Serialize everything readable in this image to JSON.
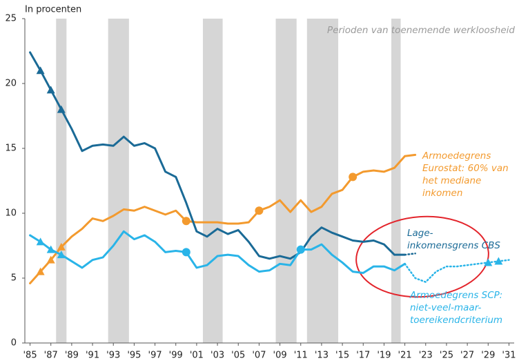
{
  "chart_data": {
    "type": "line",
    "y_label": "In procenten",
    "annotation": "Perioden van toenemende werkloosheid",
    "shaded_periods": [
      [
        1987.5,
        1988.5
      ],
      [
        1992.5,
        1994.5
      ],
      [
        2001.6,
        2003.5
      ],
      [
        2008.6,
        2010.6
      ],
      [
        2011.6,
        2014.6
      ],
      [
        2019.7,
        2020.6
      ]
    ],
    "xlim": [
      1984.5,
      2031.5
    ],
    "ylim": [
      0,
      25
    ],
    "yticks": [
      0,
      5,
      10,
      15,
      20,
      25
    ],
    "xticks": [
      {
        "value": 1985,
        "label": "'85"
      },
      {
        "value": 1987,
        "label": "'87"
      },
      {
        "value": 1989,
        "label": "'89"
      },
      {
        "value": 1991,
        "label": "'91"
      },
      {
        "value": 1993,
        "label": "'93"
      },
      {
        "value": 1995,
        "label": "'95"
      },
      {
        "value": 1997,
        "label": "'97"
      },
      {
        "value": 1999,
        "label": "'99"
      },
      {
        "value": 2001,
        "label": "'01"
      },
      {
        "value": 2003,
        "label": "'03"
      },
      {
        "value": 2005,
        "label": "'05"
      },
      {
        "value": 2007,
        "label": "'07"
      },
      {
        "value": 2009,
        "label": "'09"
      },
      {
        "value": 2011,
        "label": "'11"
      },
      {
        "value": 2013,
        "label": "'13"
      },
      {
        "value": 2015,
        "label": "'15"
      },
      {
        "value": 2017,
        "label": "'17"
      },
      {
        "value": 2019,
        "label": "'19"
      },
      {
        "value": 2021,
        "label": "'21"
      },
      {
        "value": 2023,
        "label": "'23"
      },
      {
        "value": 2025,
        "label": "'25"
      },
      {
        "value": 2027,
        "label": "'27"
      },
      {
        "value": 2029,
        "label": "'29"
      },
      {
        "value": 2031,
        "label": "'31"
      }
    ],
    "series": [
      {
        "name": [
          "Armoedegrens",
          "Eurostat: 60% van",
          "het mediane",
          "inkomen"
        ],
        "color": "#f39a2e",
        "x": [
          1985,
          1986,
          1987,
          1988,
          1989,
          1990,
          1991,
          1992,
          1993,
          1994,
          1995,
          1996,
          1997,
          1998,
          1999,
          2000,
          2001,
          2002,
          2003,
          2004,
          2005,
          2006,
          2007,
          2008,
          2009,
          2010,
          2011,
          2012,
          2013,
          2014,
          2015,
          2016,
          2017,
          2018,
          2019,
          2020,
          2021,
          2022
        ],
        "values": [
          4.6,
          5.5,
          6.4,
          7.4,
          8.2,
          8.8,
          9.6,
          9.4,
          9.8,
          10.3,
          10.2,
          10.5,
          10.2,
          9.9,
          10.2,
          9.4,
          9.3,
          9.3,
          9.3,
          9.2,
          9.2,
          9.3,
          10.2,
          10.5,
          11.0,
          10.1,
          11.0,
          10.1,
          10.5,
          11.5,
          11.8,
          12.8,
          13.2,
          13.3,
          13.2,
          13.5,
          14.4,
          14.5
        ],
        "projection_x": [],
        "projection_values": [],
        "triangle_x": [
          1986,
          1987,
          1988
        ],
        "circle_x": [
          2000,
          2007,
          2016
        ]
      },
      {
        "name": [
          "Lage-",
          "inkomensgrens CBS"
        ],
        "color": "#1a6a96",
        "x": [
          1985,
          1986,
          1987,
          1988,
          1989,
          1990,
          1991,
          1992,
          1993,
          1994,
          1995,
          1996,
          1997,
          1998,
          1999,
          2000,
          2001,
          2002,
          2003,
          2004,
          2005,
          2006,
          2007,
          2008,
          2009,
          2010,
          2011,
          2012,
          2013,
          2014,
          2015,
          2016,
          2017,
          2018,
          2019,
          2020,
          2021
        ],
        "values": [
          22.4,
          21.0,
          19.5,
          18.0,
          16.5,
          14.8,
          15.2,
          15.3,
          15.2,
          15.9,
          15.2,
          15.4,
          15.0,
          13.2,
          12.8,
          10.8,
          8.6,
          8.2,
          8.8,
          8.4,
          8.7,
          7.8,
          6.7,
          6.5,
          6.7,
          6.5,
          7.0,
          8.2,
          8.9,
          8.5,
          8.2,
          7.9,
          7.8,
          7.9,
          7.6,
          6.8,
          6.8
        ],
        "projection_x": [
          2021,
          2022
        ],
        "projection_values": [
          6.8,
          6.9
        ],
        "triangle_x": [
          1986,
          1987,
          1988
        ],
        "circle_x": []
      },
      {
        "name": [
          "Armoedegrens SCP:",
          "niet-veel-maar-",
          "toereikendcriterium"
        ],
        "color": "#29b4e8",
        "x": [
          1985,
          1986,
          1987,
          1988,
          1989,
          1990,
          1991,
          1992,
          1993,
          1994,
          1995,
          1996,
          1997,
          1998,
          1999,
          2000,
          2001,
          2002,
          2003,
          2004,
          2005,
          2006,
          2007,
          2008,
          2009,
          2010,
          2011,
          2012,
          2013,
          2014,
          2015,
          2016,
          2017,
          2018,
          2019,
          2020,
          2021
        ],
        "values": [
          8.3,
          7.8,
          7.2,
          6.8,
          6.3,
          5.8,
          6.4,
          6.6,
          7.5,
          8.6,
          8.0,
          8.3,
          7.8,
          7.0,
          7.1,
          7.0,
          5.8,
          6.0,
          6.7,
          6.8,
          6.7,
          6.0,
          5.5,
          5.6,
          6.1,
          6.0,
          7.2,
          7.2,
          7.6,
          6.8,
          6.2,
          5.5,
          5.4,
          5.9,
          5.9,
          5.6,
          6.1
        ],
        "projection_x": [
          2021,
          2022,
          2023,
          2024,
          2025,
          2026,
          2027,
          2028,
          2029,
          2030,
          2031
        ],
        "projection_values": [
          6.1,
          5.0,
          4.7,
          5.5,
          5.9,
          5.9,
          6.0,
          6.1,
          6.2,
          6.3,
          6.4
        ],
        "triangle_x": [
          1986,
          1987,
          1988,
          2029,
          2030
        ],
        "circle_x": [
          2000,
          2011
        ]
      }
    ]
  }
}
